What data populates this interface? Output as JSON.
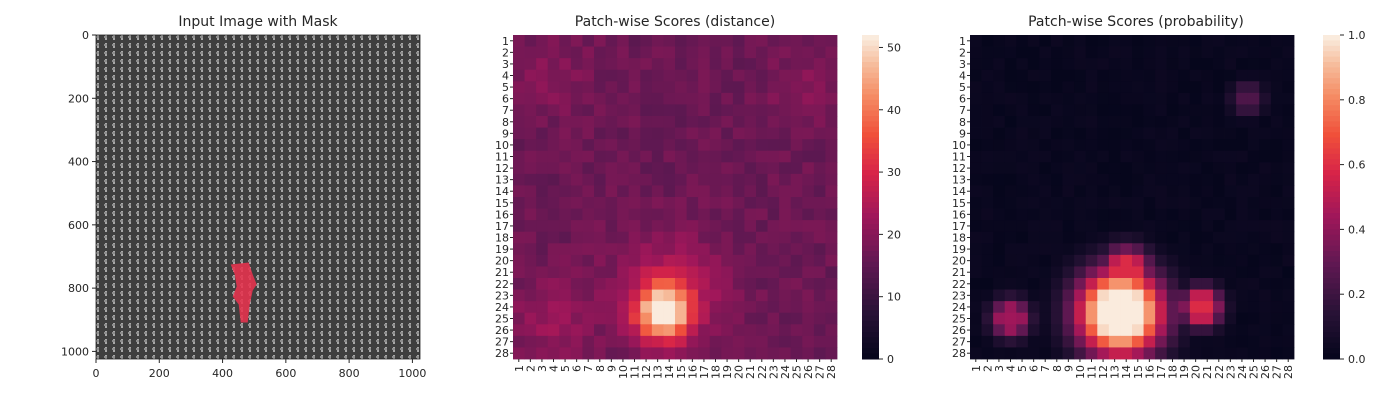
{
  "chart_data": [
    {
      "type": "image",
      "title": "Input Image with Mask",
      "xlim": [
        0,
        1024
      ],
      "ylim": [
        1024,
        0
      ],
      "xticks": [
        0,
        200,
        400,
        600,
        800,
        1000
      ],
      "yticks": [
        0,
        200,
        400,
        600,
        800,
        1000
      ],
      "mask_color": "#e8334f",
      "mask_center": [
        470,
        820
      ]
    },
    {
      "type": "heatmap",
      "title": "Patch-wise Scores (distance)",
      "grid_size": 28,
      "labels": [
        "1",
        "2",
        "3",
        "4",
        "5",
        "6",
        "7",
        "8",
        "9",
        "10",
        "11",
        "12",
        "13",
        "14",
        "15",
        "16",
        "17",
        "18",
        "19",
        "20",
        "21",
        "22",
        "23",
        "24",
        "25",
        "26",
        "27",
        "28"
      ],
      "vmin": 0,
      "vmax": 52,
      "colorbar_ticks": [
        0,
        10,
        20,
        30,
        40,
        50
      ],
      "colormap": "rocket",
      "base": 17,
      "hotspots": [
        {
          "row": 24.5,
          "col": 13.5,
          "peak": 52,
          "radius": 1.6
        },
        {
          "row": 22.5,
          "col": 14.0,
          "peak": 36,
          "radius": 3.0
        },
        {
          "row": 25.0,
          "col": 4.0,
          "peak": 27,
          "radius": 2.5
        },
        {
          "row": 5.5,
          "col": 25.5,
          "peak": 24,
          "radius": 2.0
        },
        {
          "row": 4.0,
          "col": 4.0,
          "peak": 23,
          "radius": 2.5
        }
      ]
    },
    {
      "type": "heatmap",
      "title": "Patch-wise Scores (probability)",
      "grid_size": 28,
      "labels": [
        "1",
        "2",
        "3",
        "4",
        "5",
        "6",
        "7",
        "8",
        "9",
        "10",
        "11",
        "12",
        "13",
        "14",
        "15",
        "16",
        "17",
        "18",
        "19",
        "20",
        "21",
        "22",
        "23",
        "24",
        "25",
        "26",
        "27",
        "28"
      ],
      "vmin": 0.0,
      "vmax": 1.0,
      "colorbar_ticks": [
        0.0,
        0.2,
        0.4,
        0.6,
        0.8,
        1.0
      ],
      "colorbar_labels": [
        "0.0",
        "0.2",
        "0.4",
        "0.6",
        "0.8",
        "1.0"
      ],
      "colormap": "rocket",
      "base": 0.01,
      "hotspots": [
        {
          "row": 24.5,
          "col": 13.5,
          "peak": 1.0,
          "radius": 2.6
        },
        {
          "row": 21.0,
          "col": 14.0,
          "peak": 0.6,
          "radius": 1.5
        },
        {
          "row": 25.0,
          "col": 4.0,
          "peak": 0.45,
          "radius": 1.2
        },
        {
          "row": 24.0,
          "col": 20.5,
          "peak": 0.6,
          "radius": 1.2
        },
        {
          "row": 6.0,
          "col": 24.5,
          "peak": 0.25,
          "radius": 1.0
        }
      ]
    }
  ]
}
